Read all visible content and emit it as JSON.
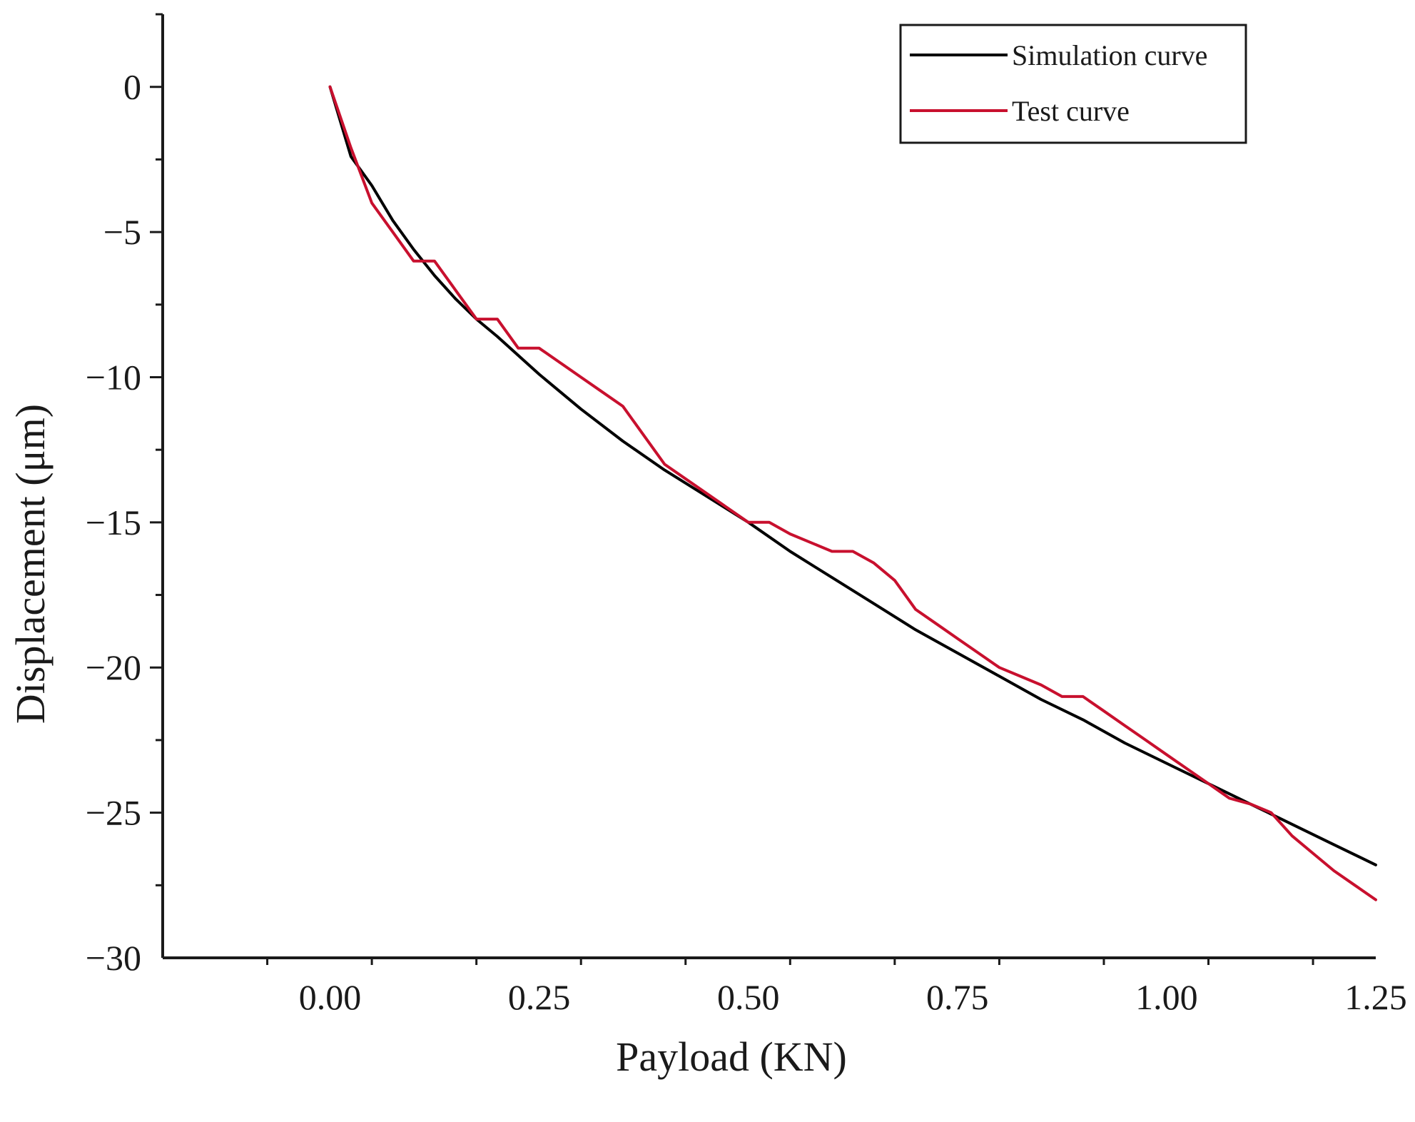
{
  "chart_data": {
    "type": "line",
    "title": "",
    "xlabel": "Payload (KN)",
    "ylabel": "Displacement (μm)",
    "xlim": [
      -0.2,
      1.25
    ],
    "ylim": [
      -30,
      2.5
    ],
    "x_ticks": [
      0.0,
      0.25,
      0.5,
      0.75,
      1.0,
      1.25
    ],
    "x_tick_labels": [
      "0.00",
      "0.25",
      "0.50",
      "0.75",
      "1.00",
      "1.25"
    ],
    "y_ticks": [
      0,
      -5,
      -10,
      -15,
      -20,
      -25,
      -30
    ],
    "y_tick_labels": [
      "0",
      "−5",
      "−10",
      "−15",
      "−20",
      "−25",
      "−30"
    ],
    "grid": false,
    "legend_position": "top-right",
    "series": [
      {
        "name": "Simulation curve",
        "color": "#000000",
        "x": [
          0,
          0.025,
          0.05,
          0.075,
          0.1,
          0.125,
          0.15,
          0.175,
          0.2,
          0.25,
          0.3,
          0.35,
          0.4,
          0.45,
          0.5,
          0.55,
          0.6,
          0.65,
          0.7,
          0.75,
          0.8,
          0.85,
          0.9,
          0.95,
          1.0,
          1.05,
          1.1,
          1.15,
          1.2,
          1.25
        ],
        "y": [
          0,
          -2.4,
          -3.4,
          -4.6,
          -5.6,
          -6.5,
          -7.3,
          -8.0,
          -8.6,
          -9.9,
          -11.1,
          -12.2,
          -13.2,
          -14.1,
          -15.0,
          -16.0,
          -16.9,
          -17.8,
          -18.7,
          -19.5,
          -20.3,
          -21.1,
          -21.8,
          -22.6,
          -23.3,
          -24.0,
          -24.7,
          -25.4,
          -26.1,
          -26.8
        ]
      },
      {
        "name": "Test curve",
        "color": "#c8102e",
        "x": [
          0,
          0.025,
          0.05,
          0.075,
          0.1,
          0.125,
          0.15,
          0.175,
          0.2,
          0.225,
          0.25,
          0.275,
          0.3,
          0.325,
          0.35,
          0.375,
          0.4,
          0.45,
          0.5,
          0.525,
          0.55,
          0.575,
          0.6,
          0.625,
          0.65,
          0.675,
          0.7,
          0.725,
          0.75,
          0.775,
          0.8,
          0.825,
          0.85,
          0.875,
          0.9,
          0.925,
          0.95,
          0.975,
          1.0,
          1.025,
          1.05,
          1.075,
          1.1,
          1.125,
          1.15,
          1.175,
          1.2,
          1.225,
          1.25
        ],
        "y": [
          0,
          -2.1,
          -4.0,
          -5.0,
          -6.0,
          -6.0,
          -7.0,
          -8.0,
          -8.0,
          -9.0,
          -9.0,
          -9.5,
          -10.0,
          -10.5,
          -11.0,
          -12.0,
          -13.0,
          -14.0,
          -15.0,
          -15.0,
          -15.4,
          -15.7,
          -16.0,
          -16.0,
          -16.4,
          -17.0,
          -18.0,
          -18.5,
          -19.0,
          -19.5,
          -20.0,
          -20.3,
          -20.6,
          -21.0,
          -21.0,
          -21.5,
          -22.0,
          -22.5,
          -23.0,
          -23.5,
          -24.0,
          -24.5,
          -24.7,
          -25.0,
          -25.8,
          -26.4,
          -27.0,
          -27.5,
          -28.0
        ]
      }
    ]
  }
}
